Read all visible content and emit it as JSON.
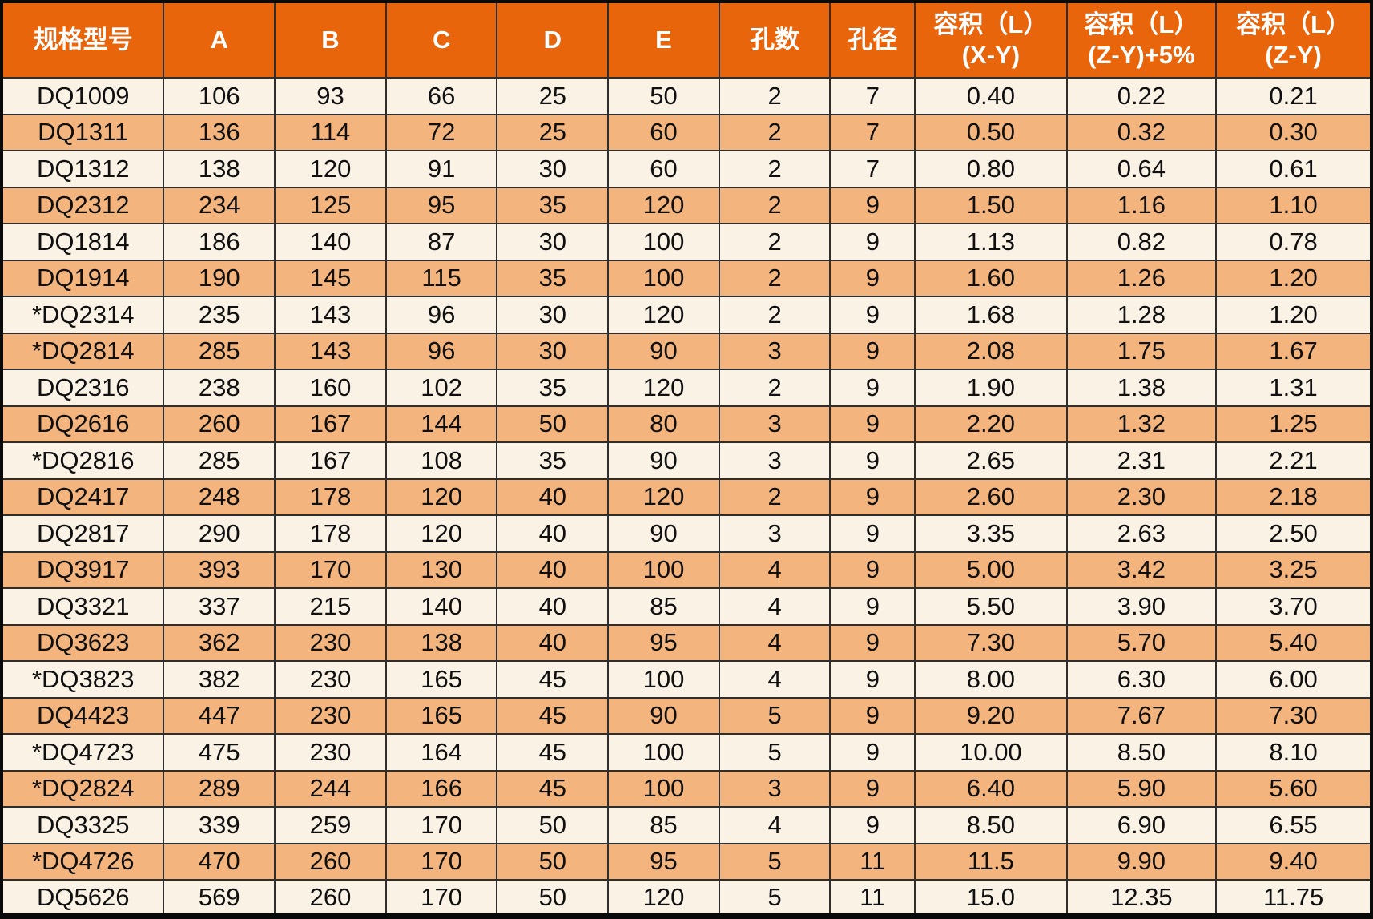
{
  "colors": {
    "header_bg": "#E8650C",
    "row_cream": "#FBF2E6",
    "row_orange": "#F4B47E",
    "grid_line": "#2E2E2E",
    "header_text": "#FFFFFF",
    "cell_text": "#101010"
  },
  "table": {
    "columns": [
      {
        "key": "model",
        "line1": "规格型号",
        "line2": ""
      },
      {
        "key": "a",
        "line1": "A",
        "line2": ""
      },
      {
        "key": "b",
        "line1": "B",
        "line2": ""
      },
      {
        "key": "c",
        "line1": "C",
        "line2": ""
      },
      {
        "key": "d",
        "line1": "D",
        "line2": ""
      },
      {
        "key": "e",
        "line1": "E",
        "line2": ""
      },
      {
        "key": "hole-count",
        "line1": "孔数",
        "line2": ""
      },
      {
        "key": "hole-diameter",
        "line1": "孔径",
        "line2": ""
      },
      {
        "key": "volume-x-y",
        "line1": "容积（L）",
        "line2": "(X-Y)"
      },
      {
        "key": "volume-z-y-plus-5",
        "line1": "容积（L）",
        "line2": "(Z-Y)+5%"
      },
      {
        "key": "volume-z-y",
        "line1": "容积（L）",
        "line2": "(Z-Y)"
      }
    ],
    "rows": [
      [
        "DQ1009",
        "106",
        "93",
        "66",
        "25",
        "50",
        "2",
        "7",
        "0.40",
        "0.22",
        "0.21"
      ],
      [
        "DQ1311",
        "136",
        "114",
        "72",
        "25",
        "60",
        "2",
        "7",
        "0.50",
        "0.32",
        "0.30"
      ],
      [
        "DQ1312",
        "138",
        "120",
        "91",
        "30",
        "60",
        "2",
        "7",
        "0.80",
        "0.64",
        "0.61"
      ],
      [
        "DQ2312",
        "234",
        "125",
        "95",
        "35",
        "120",
        "2",
        "9",
        "1.50",
        "1.16",
        "1.10"
      ],
      [
        "DQ1814",
        "186",
        "140",
        "87",
        "30",
        "100",
        "2",
        "9",
        "1.13",
        "0.82",
        "0.78"
      ],
      [
        "DQ1914",
        "190",
        "145",
        "115",
        "35",
        "100",
        "2",
        "9",
        "1.60",
        "1.26",
        "1.20"
      ],
      [
        "*DQ2314",
        "235",
        "143",
        "96",
        "30",
        "120",
        "2",
        "9",
        "1.68",
        "1.28",
        "1.20"
      ],
      [
        "*DQ2814",
        "285",
        "143",
        "96",
        "30",
        "90",
        "3",
        "9",
        "2.08",
        "1.75",
        "1.67"
      ],
      [
        "DQ2316",
        "238",
        "160",
        "102",
        "35",
        "120",
        "2",
        "9",
        "1.90",
        "1.38",
        "1.31"
      ],
      [
        "DQ2616",
        "260",
        "167",
        "144",
        "50",
        "80",
        "3",
        "9",
        "2.20",
        "1.32",
        "1.25"
      ],
      [
        "*DQ2816",
        "285",
        "167",
        "108",
        "35",
        "90",
        "3",
        "9",
        "2.65",
        "2.31",
        "2.21"
      ],
      [
        "DQ2417",
        "248",
        "178",
        "120",
        "40",
        "120",
        "2",
        "9",
        "2.60",
        "2.30",
        "2.18"
      ],
      [
        "DQ2817",
        "290",
        "178",
        "120",
        "40",
        "90",
        "3",
        "9",
        "3.35",
        "2.63",
        "2.50"
      ],
      [
        "DQ3917",
        "393",
        "170",
        "130",
        "40",
        "100",
        "4",
        "9",
        "5.00",
        "3.42",
        "3.25"
      ],
      [
        "DQ3321",
        "337",
        "215",
        "140",
        "40",
        "85",
        "4",
        "9",
        "5.50",
        "3.90",
        "3.70"
      ],
      [
        "DQ3623",
        "362",
        "230",
        "138",
        "40",
        "95",
        "4",
        "9",
        "7.30",
        "5.70",
        "5.40"
      ],
      [
        "*DQ3823",
        "382",
        "230",
        "165",
        "45",
        "100",
        "4",
        "9",
        "8.00",
        "6.30",
        "6.00"
      ],
      [
        "DQ4423",
        "447",
        "230",
        "165",
        "45",
        "90",
        "5",
        "9",
        "9.20",
        "7.67",
        "7.30"
      ],
      [
        "*DQ4723",
        "475",
        "230",
        "164",
        "45",
        "100",
        "5",
        "9",
        "10.00",
        "8.50",
        "8.10"
      ],
      [
        "*DQ2824",
        "289",
        "244",
        "166",
        "45",
        "100",
        "3",
        "9",
        "6.40",
        "5.90",
        "5.60"
      ],
      [
        "DQ3325",
        "339",
        "259",
        "170",
        "50",
        "85",
        "4",
        "9",
        "8.50",
        "6.90",
        "6.55"
      ],
      [
        "*DQ4726",
        "470",
        "260",
        "170",
        "50",
        "95",
        "5",
        "11",
        "11.5",
        "9.90",
        "9.40"
      ],
      [
        "DQ5626",
        "569",
        "260",
        "170",
        "50",
        "120",
        "5",
        "11",
        "15.0",
        "12.35",
        "11.75"
      ]
    ]
  }
}
